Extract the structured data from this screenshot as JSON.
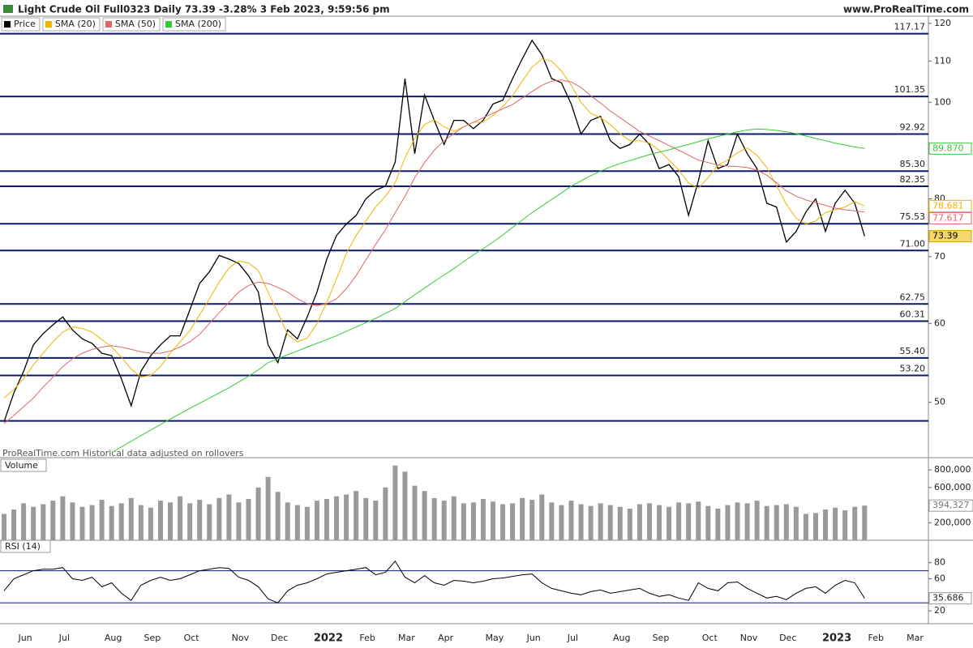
{
  "chart_data": [
    {
      "type": "line",
      "log": true,
      "title": "Light Crude Oil Full0323 Daily 73.39 -3.28% 3 Feb 2023, 9:59:56 pm",
      "source": "www.ProRealTime.com",
      "note": "ProRealTime.com Historical data adjusted on rollovers",
      "categories": [
        null,
        "Jun",
        null,
        null,
        null,
        "Jul",
        null,
        null,
        null,
        null,
        "Aug",
        null,
        null,
        null,
        "Sep",
        null,
        null,
        null,
        "Oct",
        null,
        null,
        null,
        null,
        "Nov",
        null,
        null,
        null,
        "Dec",
        null,
        null,
        null,
        null,
        "2022",
        null,
        null,
        null,
        "Feb",
        null,
        null,
        null,
        "Mar",
        null,
        null,
        null,
        "Apr",
        null,
        null,
        null,
        null,
        "May",
        null,
        null,
        null,
        "Jun",
        null,
        null,
        null,
        "Jul",
        null,
        null,
        null,
        null,
        "Aug",
        null,
        null,
        null,
        "Sep",
        null,
        null,
        null,
        null,
        "Oct",
        null,
        null,
        null,
        "Nov",
        null,
        null,
        null,
        "Dec",
        null,
        null,
        null,
        null,
        "2023",
        null,
        null,
        null,
        "Feb",
        null,
        null,
        null,
        "Mar",
        null
      ],
      "series": [
        {
          "name": "Price",
          "color": "#000000",
          "values": [
            47.8,
            51.1,
            53.7,
            57.1,
            58.6,
            59.8,
            60.9,
            59.1,
            57.9,
            57.3,
            56.0,
            55.7,
            52.8,
            49.6,
            53.7,
            55.7,
            57.1,
            58.3,
            58.3,
            61.9,
            65.8,
            67.6,
            70.2,
            69.6,
            68.9,
            67.0,
            64.5,
            57.1,
            54.8,
            59.1,
            57.9,
            60.9,
            64.5,
            69.6,
            73.5,
            75.5,
            77.0,
            80.0,
            81.6,
            82.4,
            87.1,
            105.6,
            88.8,
            101.7,
            95.9,
            90.7,
            95.9,
            95.9,
            94.1,
            95.9,
            99.6,
            100.5,
            105.6,
            110.6,
            115.4,
            111.6,
            105.6,
            104.6,
            99.6,
            92.9,
            95.9,
            96.8,
            91.5,
            89.9,
            90.7,
            92.9,
            90.7,
            85.8,
            86.6,
            84.2,
            77.0,
            83.4,
            91.5,
            85.8,
            86.6,
            92.9,
            88.8,
            85.8,
            79.2,
            78.5,
            72.4,
            74.2,
            77.6,
            80.0,
            74.2,
            79.2,
            81.6,
            79.2,
            73.39,
            null,
            null,
            null,
            null,
            null
          ]
        },
        {
          "name": "SMA (20)",
          "color": "#f0b400",
          "values": [
            50.5,
            51.5,
            52.8,
            54.5,
            56.0,
            57.5,
            58.8,
            59.5,
            59.3,
            58.8,
            57.8,
            56.8,
            55.5,
            54.0,
            53.0,
            53.2,
            54.3,
            56.0,
            57.5,
            59.0,
            61.2,
            63.5,
            66.0,
            68.2,
            69.3,
            69.0,
            67.8,
            64.5,
            61.5,
            58.5,
            57.5,
            58.0,
            60.0,
            63.0,
            66.5,
            70.5,
            73.5,
            76.0,
            78.5,
            80.5,
            83.0,
            88.0,
            92.0,
            95.0,
            96.0,
            94.5,
            93.5,
            94.5,
            95.5,
            95.5,
            97.0,
            99.0,
            101.5,
            105.0,
            108.5,
            110.5,
            110.0,
            107.5,
            104.0,
            100.0,
            97.5,
            96.5,
            95.0,
            93.0,
            91.5,
            91.5,
            91.0,
            89.5,
            87.5,
            85.5,
            83.0,
            82.0,
            84.0,
            86.5,
            87.5,
            89.0,
            90.0,
            88.5,
            86.0,
            82.5,
            79.0,
            76.5,
            75.5,
            76.0,
            77.5,
            78.0,
            78.5,
            79.5,
            78.681,
            null,
            null,
            null,
            null,
            null
          ]
        },
        {
          "name": "SMA (50)",
          "color": "#e06666",
          "values": [
            47.6,
            48.5,
            49.5,
            50.5,
            51.8,
            53.0,
            54.3,
            55.3,
            56.0,
            56.5,
            56.8,
            57.0,
            56.8,
            56.5,
            56.2,
            56.0,
            56.0,
            56.3,
            56.8,
            57.5,
            58.5,
            60.0,
            61.5,
            63.0,
            64.5,
            65.5,
            66.0,
            65.8,
            65.2,
            64.5,
            63.5,
            62.8,
            62.5,
            62.8,
            63.5,
            65.0,
            67.0,
            69.5,
            72.0,
            74.5,
            77.5,
            80.5,
            84.0,
            87.0,
            89.5,
            91.5,
            93.0,
            94.5,
            95.5,
            96.5,
            97.5,
            98.5,
            99.5,
            101.0,
            102.5,
            104.0,
            105.0,
            105.3,
            104.8,
            103.5,
            101.5,
            99.8,
            98.0,
            96.5,
            95.0,
            93.5,
            92.5,
            91.5,
            90.5,
            89.5,
            88.5,
            87.5,
            87.0,
            86.5,
            86.3,
            86.2,
            86.0,
            85.5,
            84.5,
            83.0,
            81.5,
            80.5,
            79.8,
            79.3,
            78.8,
            78.3,
            78.0,
            77.8,
            77.617,
            null,
            null,
            null,
            null,
            null
          ]
        },
        {
          "name": "SMA (200)",
          "color": "#33cc33",
          "values": [
            null,
            null,
            null,
            null,
            null,
            null,
            null,
            null,
            null,
            null,
            null,
            44.5,
            45.1,
            45.7,
            46.3,
            46.9,
            47.5,
            48.1,
            48.7,
            49.3,
            49.9,
            50.5,
            51.1,
            51.7,
            52.4,
            53.1,
            53.9,
            54.8,
            55.3,
            55.8,
            56.3,
            56.8,
            57.3,
            57.8,
            58.3,
            58.9,
            59.5,
            60.1,
            60.7,
            61.4,
            62.1,
            63.1,
            64.1,
            65.1,
            66.1,
            67.1,
            68.1,
            69.2,
            70.3,
            71.3,
            72.4,
            73.6,
            74.9,
            76.2,
            77.5,
            78.7,
            79.9,
            81.1,
            82.4,
            83.4,
            84.4,
            85.3,
            86.1,
            86.8,
            87.4,
            88.0,
            88.6,
            89.1,
            89.6,
            90.2,
            90.7,
            91.3,
            91.9,
            92.4,
            92.9,
            93.4,
            93.8,
            94.0,
            93.9,
            93.7,
            93.4,
            93.0,
            92.5,
            92.0,
            91.5,
            91.0,
            90.6,
            90.2,
            89.87,
            null,
            null,
            null,
            null,
            null
          ],
          "value_labels": [
            null,
            null,
            null,
            null,
            null,
            null,
            null,
            null,
            null,
            null,
            null,
            null,
            null,
            null,
            null,
            null,
            null,
            null,
            null,
            null,
            null,
            null,
            null,
            null,
            null,
            null,
            null,
            null,
            null,
            null,
            null,
            null,
            null,
            null,
            null,
            null,
            null,
            null,
            null,
            null,
            null,
            null,
            null,
            null,
            null,
            null,
            null,
            null,
            null,
            null,
            null,
            null,
            null,
            null,
            null,
            null,
            null,
            null,
            null,
            null,
            null,
            null,
            null,
            null,
            null,
            null,
            null,
            null,
            null,
            null,
            null,
            null,
            null,
            null,
            null,
            null,
            null,
            null,
            null,
            null,
            null,
            null,
            null,
            null,
            null,
            null,
            null,
            null,
            "89.870",
            null,
            null,
            null,
            null,
            null
          ]
        }
      ],
      "levels": [
        {
          "value": 117.17,
          "label": "117.17"
        },
        {
          "value": 101.35,
          "label": "101.35"
        },
        {
          "value": 92.92,
          "label": "92.92"
        },
        {
          "value": 85.3,
          "label": "85.30"
        },
        {
          "value": 82.35,
          "label": "82.35"
        },
        {
          "value": 75.53,
          "label": "75.53"
        },
        {
          "value": 71.0,
          "label": "71.00"
        },
        {
          "value": 62.75,
          "label": "62.75"
        },
        {
          "value": 60.31,
          "label": "60.31"
        },
        {
          "value": 55.4,
          "label": "55.40"
        },
        {
          "value": 53.2,
          "label": "53.20"
        },
        {
          "value": 47.9
        }
      ],
      "level_color": "#0b1a6b",
      "ylim": [
        44,
        122
      ],
      "yticks": [
        50,
        60,
        70,
        80,
        100,
        110,
        120
      ]
    },
    {
      "type": "bar",
      "title": "Volume",
      "color": "#9a9a9a",
      "values": [
        300000,
        350000,
        420000,
        380000,
        410000,
        450000,
        500000,
        430000,
        380000,
        400000,
        460000,
        390000,
        420000,
        480000,
        400000,
        370000,
        450000,
        430000,
        500000,
        420000,
        460000,
        410000,
        480000,
        520000,
        430000,
        470000,
        600000,
        720000,
        550000,
        430000,
        400000,
        380000,
        450000,
        470000,
        500000,
        520000,
        560000,
        480000,
        450000,
        600000,
        850000,
        780000,
        620000,
        560000,
        480000,
        450000,
        500000,
        420000,
        430000,
        470000,
        440000,
        410000,
        420000,
        480000,
        460000,
        520000,
        430000,
        400000,
        450000,
        410000,
        390000,
        420000,
        400000,
        380000,
        360000,
        410000,
        420000,
        400000,
        380000,
        430000,
        420000,
        440000,
        390000,
        360000,
        400000,
        430000,
        420000,
        450000,
        390000,
        400000,
        410000,
        380000,
        300000,
        310000,
        350000,
        370000,
        340000,
        380000,
        394327,
        null,
        null,
        null,
        null,
        null
      ],
      "value_labels": [
        null,
        null,
        null,
        null,
        null,
        null,
        null,
        null,
        null,
        null,
        null,
        null,
        null,
        null,
        null,
        null,
        null,
        null,
        null,
        null,
        null,
        null,
        null,
        null,
        null,
        null,
        null,
        null,
        null,
        null,
        null,
        null,
        null,
        null,
        null,
        null,
        null,
        null,
        null,
        null,
        null,
        null,
        null,
        null,
        null,
        null,
        null,
        null,
        null,
        null,
        null,
        null,
        null,
        null,
        null,
        null,
        null,
        null,
        null,
        null,
        null,
        null,
        null,
        null,
        null,
        null,
        null,
        null,
        null,
        null,
        null,
        null,
        null,
        null,
        null,
        null,
        null,
        null,
        null,
        null,
        null,
        null,
        null,
        null,
        null,
        null,
        null,
        null,
        "394,327",
        null,
        null,
        null,
        null,
        null
      ],
      "ylim": [
        0,
        930000
      ],
      "yticks": [
        {
          "value": 200000,
          "label": "200,000"
        },
        {
          "value": 600000,
          "label": "600,000"
        },
        {
          "value": 800000,
          "label": "800,000"
        }
      ]
    },
    {
      "type": "line",
      "title": "RSI (14)",
      "color": "#000000",
      "values": [
        45,
        60,
        65,
        70,
        72,
        72,
        74,
        60,
        58,
        62,
        50,
        55,
        42,
        33,
        52,
        58,
        62,
        58,
        60,
        65,
        70,
        72,
        74,
        73,
        62,
        58,
        50,
        35,
        30,
        45,
        52,
        55,
        60,
        66,
        68,
        70,
        72,
        74,
        65,
        68,
        82,
        62,
        55,
        64,
        55,
        52,
        58,
        57,
        55,
        57,
        60,
        61,
        63,
        65,
        66,
        55,
        48,
        45,
        42,
        40,
        44,
        46,
        42,
        44,
        46,
        48,
        42,
        38,
        40,
        36,
        33,
        55,
        48,
        45,
        55,
        56,
        48,
        42,
        36,
        38,
        34,
        42,
        48,
        50,
        42,
        52,
        58,
        55,
        35.686,
        null,
        null,
        null,
        null,
        null
      ],
      "levels": [
        70,
        30
      ],
      "level_color": "#0b1a6b",
      "ylim": [
        4,
        107
      ],
      "yticks": [
        20,
        60,
        80
      ]
    }
  ]
}
